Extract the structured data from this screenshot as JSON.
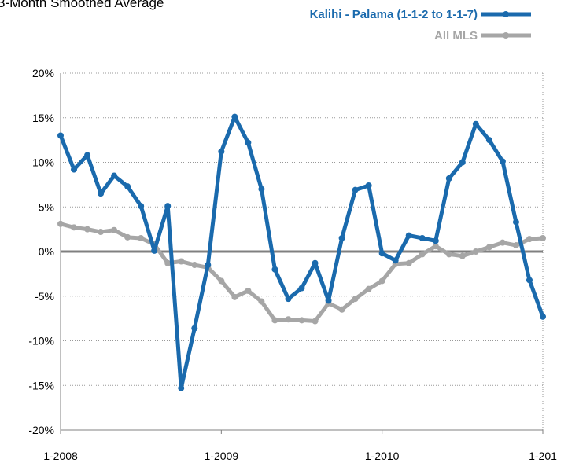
{
  "chart_data": {
    "type": "line",
    "title": "3-Month Smoothed Average",
    "categories": [
      "1-2008",
      null,
      null,
      null,
      null,
      null,
      null,
      null,
      null,
      null,
      null,
      null,
      "1-2009",
      null,
      null,
      null,
      null,
      null,
      null,
      null,
      null,
      null,
      null,
      null,
      "1-2010",
      null,
      null,
      null,
      null,
      null,
      null,
      null,
      null,
      null,
      null,
      null,
      "1-201"
    ],
    "series": [
      {
        "name": "Kalihi - Palama (1-1-2 to 1-1-7)",
        "color": "#1a6aad",
        "values": [
          13.0,
          9.2,
          10.8,
          6.5,
          8.5,
          7.3,
          5.1,
          0.1,
          5.1,
          -15.3,
          -8.6,
          -1.5,
          11.2,
          15.1,
          12.2,
          7.0,
          -2.0,
          -5.3,
          -4.1,
          -1.3,
          -5.5,
          1.5,
          6.9,
          7.4,
          -0.2,
          -1.0,
          1.8,
          1.5,
          1.2,
          8.2,
          10.0,
          14.3,
          12.5,
          10.1,
          3.3,
          -3.2,
          -7.3
        ]
      },
      {
        "name": "All MLS",
        "color": "#a6a6a6",
        "values": [
          3.1,
          2.7,
          2.5,
          2.2,
          2.4,
          1.6,
          1.5,
          0.8,
          -1.3,
          -1.1,
          -1.5,
          -1.8,
          -3.3,
          -5.1,
          -4.4,
          -5.6,
          -7.7,
          -7.6,
          -7.7,
          -7.8,
          -5.8,
          -6.5,
          -5.3,
          -4.2,
          -3.3,
          -1.4,
          -1.3,
          -0.3,
          0.6,
          -0.3,
          -0.5,
          0.0,
          0.5,
          1.0,
          0.7,
          1.4,
          1.5
        ]
      }
    ],
    "ylim": [
      -20,
      20
    ],
    "yticks": [
      {
        "value": -20,
        "label": "-20%"
      },
      {
        "value": -15,
        "label": "-15%"
      },
      {
        "value": -10,
        "label": "-10%"
      },
      {
        "value": -5,
        "label": "-5%"
      },
      {
        "value": 0,
        "label": "0%"
      },
      {
        "value": 5,
        "label": "5%"
      },
      {
        "value": 10,
        "label": "10%"
      },
      {
        "value": 15,
        "label": "15%"
      },
      {
        "value": 20,
        "label": "20%"
      }
    ],
    "grid": true,
    "legend": "top-right"
  }
}
